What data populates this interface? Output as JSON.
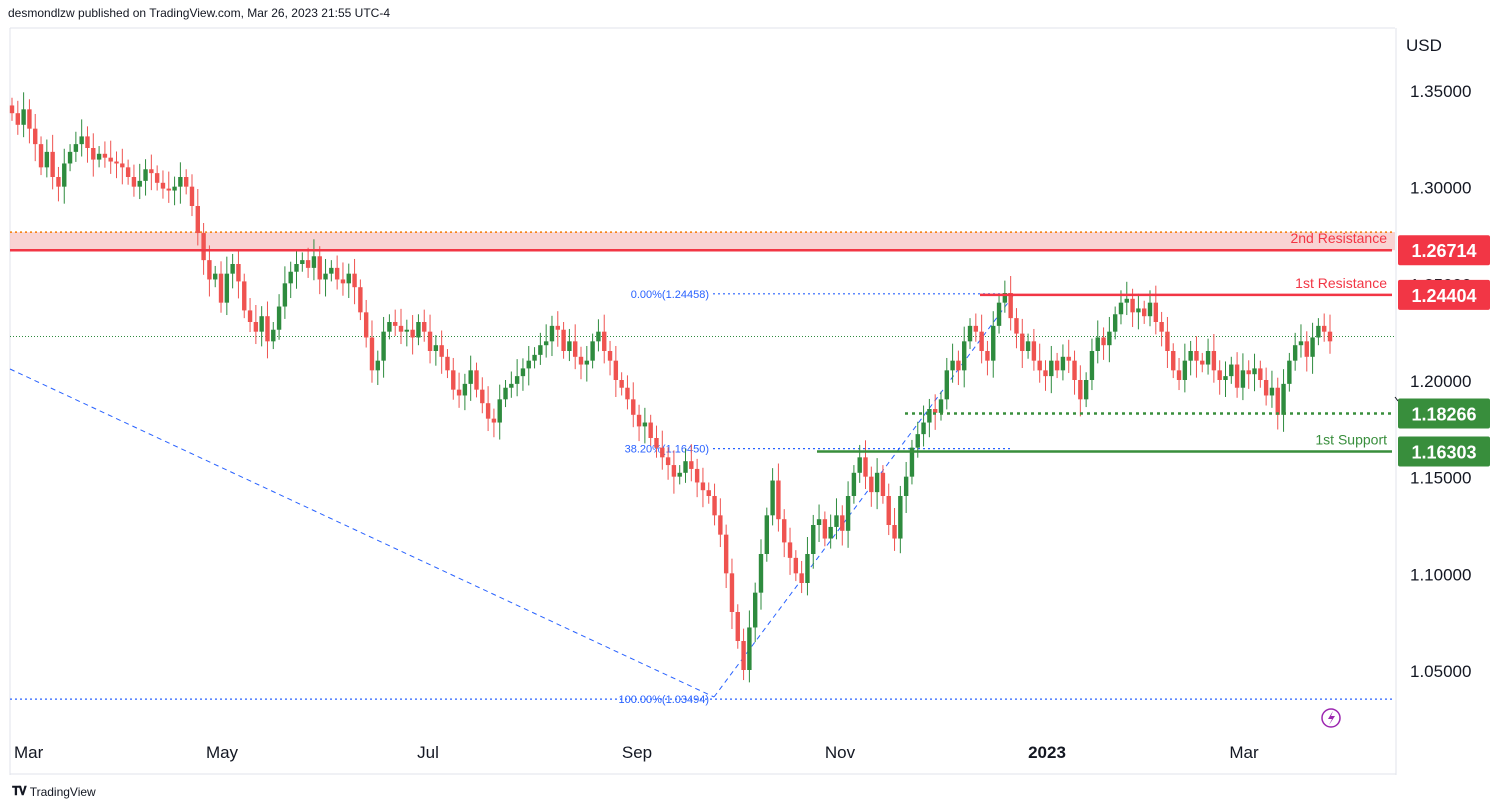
{
  "header": {
    "publisher": "desmondlzw published on TradingView.com, Mar 26, 2023 21:55 UTC-4"
  },
  "footer": {
    "brand": "TradingView"
  },
  "colors": {
    "up": "#26a69a",
    "up_body": "#2e8b3e",
    "down": "#ef5350",
    "resistance": "#f23645",
    "support": "#388e3c",
    "fib": "#2962ff",
    "grid_text": "#131722"
  },
  "chart_data": {
    "type": "candlestick",
    "currency": "USD",
    "yticks": [
      "1.35000",
      "1.30000",
      "1.25000",
      "1.20000",
      "1.15000",
      "1.10000",
      "1.05000"
    ],
    "ylim": [
      1.02,
      1.375
    ],
    "xticks": [
      "Mar",
      "May",
      "Jul",
      "Sep",
      "Nov",
      "2023",
      "Mar"
    ],
    "levels": [
      {
        "name": "2nd Resistance",
        "price": 1.26714,
        "price_label": "1.26714",
        "kind": "resistance"
      },
      {
        "name": "1st Resistance",
        "price": 1.24404,
        "price_label": "1.24404",
        "kind": "resistance"
      },
      {
        "name": "",
        "price": 1.18266,
        "price_label": "1.18266",
        "kind": "support"
      },
      {
        "name": "1st Support",
        "price": 1.16303,
        "price_label": "1.16303",
        "kind": "support"
      }
    ],
    "fibonacci": [
      {
        "label": "0.00%(1.24458)",
        "price": 1.24458
      },
      {
        "label": "38.20%(1.16450)",
        "price": 1.1645
      },
      {
        "label": "100.00%(1.03494)",
        "price": 1.03494
      }
    ],
    "last_price": 1.2225,
    "candles_closes": [
      1.338,
      1.332,
      1.34,
      1.33,
      1.322,
      1.31,
      1.318,
      1.305,
      1.3,
      1.312,
      1.318,
      1.322,
      1.326,
      1.32,
      1.314,
      1.317,
      1.315,
      1.313,
      1.312,
      1.31,
      1.305,
      1.3,
      1.303,
      1.309,
      1.307,
      1.302,
      1.299,
      1.298,
      1.3,
      1.305,
      1.3,
      1.29,
      1.276,
      1.262,
      1.252,
      1.255,
      1.24,
      1.255,
      1.26,
      1.251,
      1.236,
      1.23,
      1.225,
      1.233,
      1.22,
      1.226,
      1.238,
      1.25,
      1.256,
      1.26,
      1.262,
      1.258,
      1.264,
      1.252,
      1.255,
      1.258,
      1.252,
      1.25,
      1.255,
      1.248,
      1.235,
      1.222,
      1.205,
      1.21,
      1.225,
      1.23,
      1.228,
      1.225,
      1.226,
      1.222,
      1.23,
      1.225,
      1.215,
      1.218,
      1.212,
      1.205,
      1.195,
      1.192,
      1.198,
      1.205,
      1.195,
      1.188,
      1.18,
      1.178,
      1.19,
      1.196,
      1.198,
      1.202,
      1.206,
      1.21,
      1.213,
      1.218,
      1.22,
      1.228,
      1.226,
      1.215,
      1.22,
      1.212,
      1.208,
      1.21,
      1.22,
      1.225,
      1.215,
      1.21,
      1.2,
      1.196,
      1.19,
      1.182,
      1.176,
      1.178,
      1.17,
      1.165,
      1.16,
      1.156,
      1.15,
      1.152,
      1.158,
      1.154,
      1.147,
      1.143,
      1.14,
      1.13,
      1.12,
      1.1,
      1.08,
      1.065,
      1.05,
      1.072,
      1.09,
      1.11,
      1.13,
      1.148,
      1.128,
      1.116,
      1.108,
      1.1,
      1.095,
      1.11,
      1.125,
      1.128,
      1.118,
      1.124,
      1.13,
      1.122,
      1.14,
      1.152,
      1.16,
      1.15,
      1.142,
      1.152,
      1.14,
      1.125,
      1.118,
      1.14,
      1.15,
      1.165,
      1.172,
      1.178,
      1.185,
      1.183,
      1.19,
      1.205,
      1.21,
      1.205,
      1.22,
      1.228,
      1.225,
      1.215,
      1.21,
      1.228,
      1.24,
      1.245,
      1.232,
      1.224,
      1.215,
      1.22,
      1.21,
      1.205,
      1.202,
      1.21,
      1.205,
      1.212,
      1.21,
      1.2,
      1.19,
      1.2,
      1.215,
      1.222,
      1.218,
      1.225,
      1.234,
      1.24,
      1.242,
      1.235,
      1.237,
      1.233,
      1.24,
      1.23,
      1.225,
      1.215,
      1.205,
      1.2,
      1.21,
      1.215,
      1.21,
      1.208,
      1.215,
      1.205,
      1.2,
      1.202,
      1.208,
      1.196,
      1.205,
      1.203,
      1.206,
      1.2,
      1.192,
      1.196,
      1.182,
      1.198,
      1.21,
      1.218,
      1.22,
      1.212,
      1.222,
      1.228,
      1.225,
      1.22
    ]
  }
}
